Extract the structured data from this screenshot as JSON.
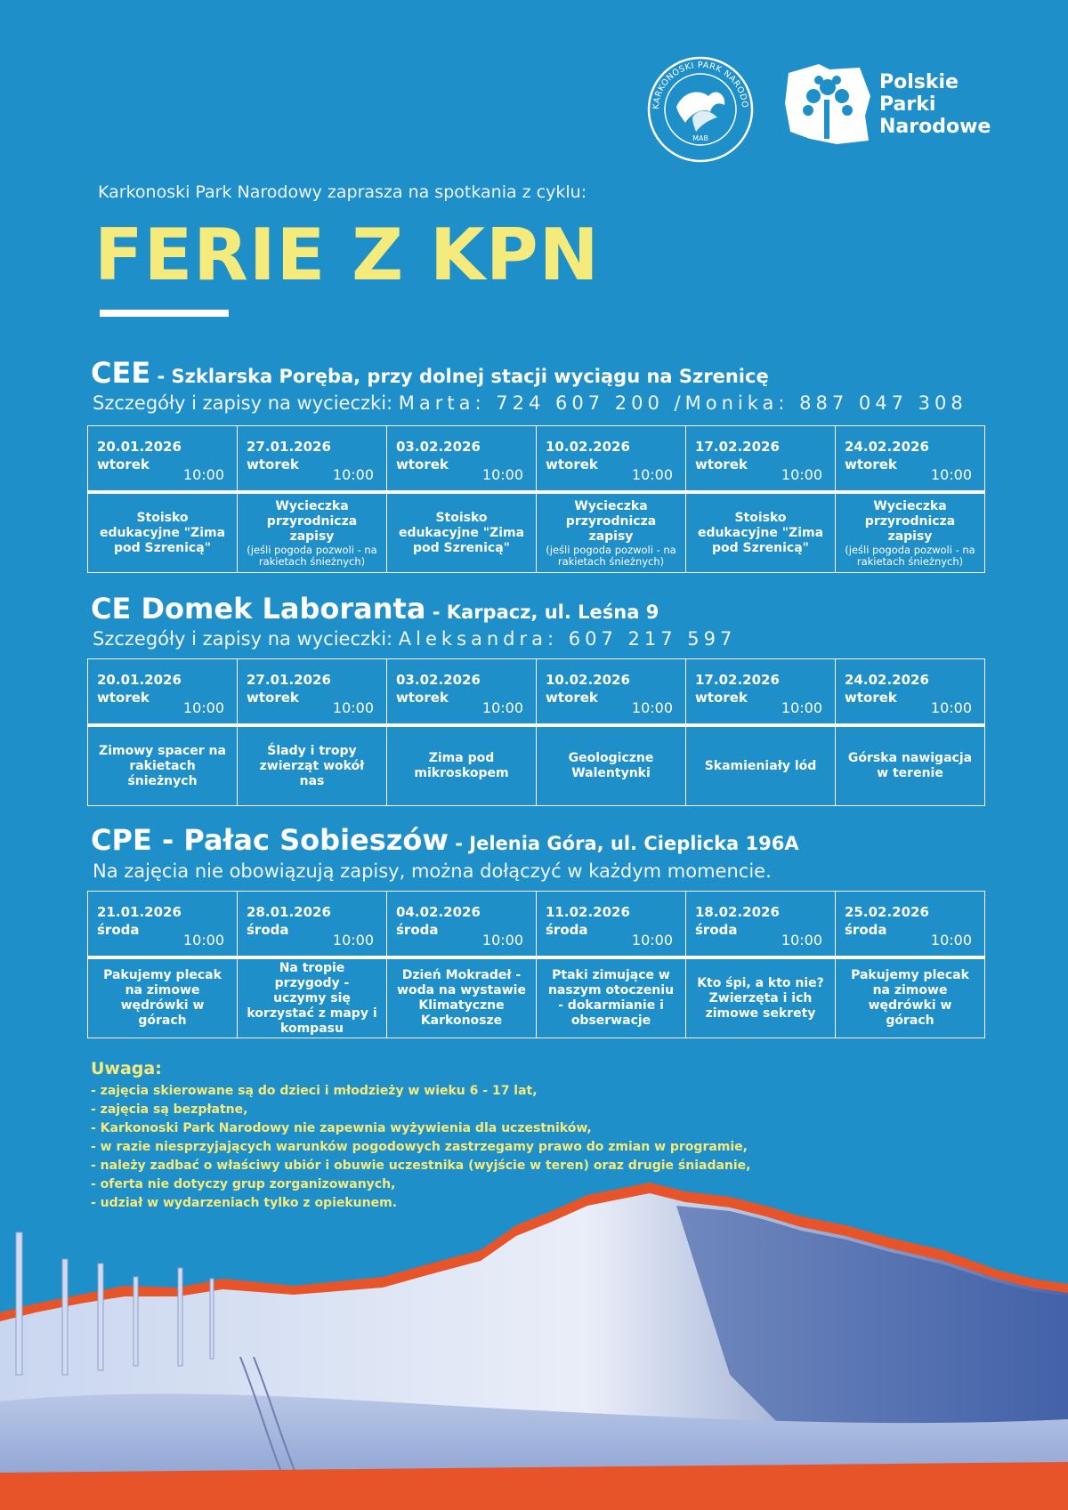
{
  "logos": {
    "kpn_ring_text": "KARKONOSKI PARK NARODOWY",
    "kpn_mark": "MAB",
    "ppn_lines": [
      "Polskie",
      "Parki",
      "Narodowe"
    ]
  },
  "intro": "Karkonoski Park Narodowy zaprasza na spotkania z cyklu:",
  "title": "FERIE Z KPN",
  "sections": [
    {
      "name": "CEE",
      "location": " - Szklarska Poręba,  przy dolnej stacji wyciągu na Szrenicę",
      "sub_label": "Szczegóły i zapisy na wycieczki: ",
      "sub_contact": "Marta: 724 607 200  /Monika: 887 047 308",
      "days": [
        {
          "date": "20.01.2026",
          "weekday": "wtorek",
          "time": "10:00",
          "activity": "Stoisko edukacyjne \"Zima pod Szrenicą\"",
          "note": ""
        },
        {
          "date": "27.01.2026",
          "weekday": "wtorek",
          "time": "10:00",
          "activity": "Wycieczka przyrodnicza zapisy",
          "note": "(jeśli pogoda pozwoli - na rakietach śnieżnych)"
        },
        {
          "date": "03.02.2026",
          "weekday": "wtorek",
          "time": "10:00",
          "activity": "Stoisko edukacyjne \"Zima pod Szrenicą\"",
          "note": ""
        },
        {
          "date": "10.02.2026",
          "weekday": "wtorek",
          "time": "10:00",
          "activity": "Wycieczka przyrodnicza zapisy",
          "note": "(jeśli pogoda pozwoli - na rakietach śnieżnych)"
        },
        {
          "date": "17.02.2026",
          "weekday": "wtorek",
          "time": "10:00",
          "activity": "Stoisko edukacyjne \"Zima pod Szrenicą\"",
          "note": ""
        },
        {
          "date": "24.02.2026",
          "weekday": "wtorek",
          "time": "10:00",
          "activity": "Wycieczka przyrodnicza zapisy",
          "note": "(jeśli pogoda pozwoli - na rakietach śnieżnych)"
        }
      ]
    },
    {
      "name": "CE Domek Laboranta",
      "location": " - Karpacz, ul. Leśna 9",
      "sub_label": "Szczegóły i zapisy na wycieczki: ",
      "sub_contact": "Aleksandra: 607 217 597",
      "days": [
        {
          "date": "20.01.2026",
          "weekday": "wtorek",
          "time": "10:00",
          "activity": "Zimowy spacer na rakietach śnieżnych",
          "note": ""
        },
        {
          "date": "27.01.2026",
          "weekday": "wtorek",
          "time": "10:00",
          "activity": "Ślady i tropy zwierząt wokół nas",
          "note": ""
        },
        {
          "date": "03.02.2026",
          "weekday": "wtorek",
          "time": "10:00",
          "activity": "Zima pod mikroskopem",
          "note": ""
        },
        {
          "date": "10.02.2026",
          "weekday": "wtorek",
          "time": "10:00",
          "activity": "Geologiczne Walentynki",
          "note": ""
        },
        {
          "date": "17.02.2026",
          "weekday": "wtorek",
          "time": "10:00",
          "activity": "Skamieniały lód",
          "note": ""
        },
        {
          "date": "24.02.2026",
          "weekday": "wtorek",
          "time": "10:00",
          "activity": "Górska nawigacja w terenie",
          "note": ""
        }
      ]
    },
    {
      "name": "CPE - Pałac Sobieszów",
      "location": "  -  Jelenia Góra, ul. Cieplicka 196A",
      "sub_label": "Na zajęcia nie obowiązują zapisy, można dołączyć w każdym momencie.",
      "sub_contact": "",
      "days": [
        {
          "date": "21.01.2026",
          "weekday": "środa",
          "time": "10:00",
          "activity": "Pakujemy plecak na zimowe wędrówki w górach",
          "note": ""
        },
        {
          "date": "28.01.2026",
          "weekday": "środa",
          "time": "10:00",
          "activity": "Na tropie przygody - uczymy się korzystać z mapy i kompasu",
          "note": ""
        },
        {
          "date": "04.02.2026",
          "weekday": "środa",
          "time": "10:00",
          "activity": "Dzień Mokradeł - woda na wystawie Klimatyczne Karkonosze",
          "note": ""
        },
        {
          "date": "11.02.2026",
          "weekday": "środa",
          "time": "10:00",
          "activity": "Ptaki zimujące w naszym otoczeniu - dokarmianie i obserwacje",
          "note": ""
        },
        {
          "date": "18.02.2026",
          "weekday": "środa",
          "time": "10:00",
          "activity": "Kto śpi, a kto nie? Zwierzęta i ich zimowe sekrety",
          "note": ""
        },
        {
          "date": "25.02.2026",
          "weekday": "środa",
          "time": "10:00",
          "activity": "Pakujemy plecak na zimowe wędrówki w górach",
          "note": ""
        }
      ]
    }
  ],
  "notice": {
    "title": "Uwaga:",
    "items": [
      "- zajęcia skierowane są do dzieci i młodzieży w wieku 6 - 17 lat,",
      "- zajęcia są bezpłatne,",
      "- Karkonoski Park Narodowy nie zapewnia wyżywienia dla uczestników,",
      "- w razie niesprzyjających warunków pogodowych zastrzegamy prawo do zmian w programie,",
      "- należy zadbać o właściwy ubiór i obuwie uczestnika (wyjście w teren) oraz drugie śniadanie,",
      "- oferta nie dotyczy grup zorganizowanych,",
      "- udział w wydarzeniach tylko z opiekunem."
    ]
  },
  "colors": {
    "background": "#1f8fc9",
    "title_yellow": "#f5ea7c",
    "accent_orange": "#e8542a",
    "mountain_blue": "#3f5fa6"
  }
}
